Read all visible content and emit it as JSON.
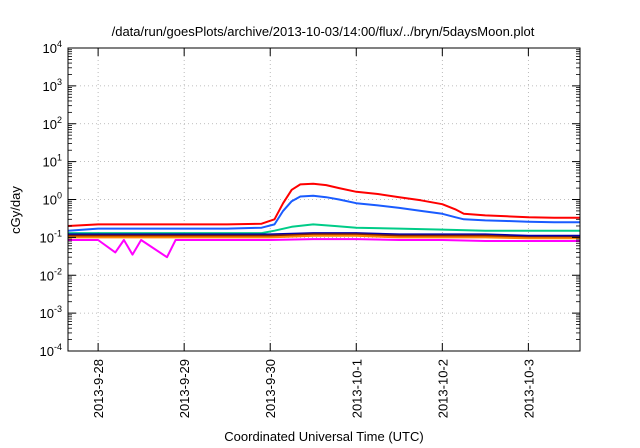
{
  "chart_data": {
    "type": "line",
    "title": "/data/run/goesPlots/archive/2013-10-03/14:00/flux/../bryn/5daysMoon.plot",
    "xlabel": "Coordinated Universal Time (UTC)",
    "ylabel": "cGy/day",
    "yscale": "log",
    "ylim": [
      0.0001,
      10000
    ],
    "xlim": [
      -0.35,
      5.6
    ],
    "x_unit": "days since 2013-9-28",
    "grid": true,
    "legend": "none",
    "y_ticks": [
      {
        "base": "10",
        "exp": "-4",
        "value": -4
      },
      {
        "base": "10",
        "exp": "-3",
        "value": -3
      },
      {
        "base": "10",
        "exp": "-2",
        "value": -2
      },
      {
        "base": "10",
        "exp": "-1",
        "value": -1
      },
      {
        "base": "10",
        "exp": "0",
        "value": 0
      },
      {
        "base": "10",
        "exp": "1",
        "value": 1
      },
      {
        "base": "10",
        "exp": "2",
        "value": 2
      },
      {
        "base": "10",
        "exp": "3",
        "value": 3
      },
      {
        "base": "10",
        "exp": "4",
        "value": 4
      }
    ],
    "x_ticks": [
      {
        "label": "2013-9-28",
        "value": 0
      },
      {
        "label": "2013-9-29",
        "value": 1
      },
      {
        "label": "2013-9-30",
        "value": 2
      },
      {
        "label": "2013-10-1",
        "value": 3
      },
      {
        "label": "2013-10-2",
        "value": 4
      },
      {
        "label": "2013-10-3",
        "value": 5
      }
    ],
    "series": [
      {
        "color": "#ff0000",
        "points": [
          [
            -0.35,
            0.2
          ],
          [
            0,
            0.22
          ],
          [
            0.5,
            0.22
          ],
          [
            1,
            0.22
          ],
          [
            1.5,
            0.22
          ],
          [
            1.9,
            0.23
          ],
          [
            2.05,
            0.3
          ],
          [
            2.15,
            0.8
          ],
          [
            2.25,
            1.8
          ],
          [
            2.35,
            2.5
          ],
          [
            2.5,
            2.6
          ],
          [
            2.65,
            2.4
          ],
          [
            2.8,
            2.0
          ],
          [
            3.0,
            1.6
          ],
          [
            3.25,
            1.4
          ],
          [
            3.5,
            1.15
          ],
          [
            3.75,
            0.95
          ],
          [
            4.0,
            0.75
          ],
          [
            4.15,
            0.55
          ],
          [
            4.25,
            0.42
          ],
          [
            4.5,
            0.38
          ],
          [
            4.75,
            0.36
          ],
          [
            5.0,
            0.34
          ],
          [
            5.3,
            0.33
          ],
          [
            5.6,
            0.33
          ]
        ]
      },
      {
        "color": "#1a5cff",
        "points": [
          [
            -0.35,
            0.15
          ],
          [
            0,
            0.17
          ],
          [
            0.5,
            0.17
          ],
          [
            1,
            0.17
          ],
          [
            1.5,
            0.17
          ],
          [
            1.9,
            0.18
          ],
          [
            2.05,
            0.22
          ],
          [
            2.15,
            0.5
          ],
          [
            2.25,
            0.9
          ],
          [
            2.35,
            1.2
          ],
          [
            2.5,
            1.25
          ],
          [
            2.65,
            1.15
          ],
          [
            2.8,
            1.0
          ],
          [
            3.0,
            0.8
          ],
          [
            3.25,
            0.7
          ],
          [
            3.5,
            0.6
          ],
          [
            3.75,
            0.5
          ],
          [
            4.0,
            0.42
          ],
          [
            4.15,
            0.34
          ],
          [
            4.25,
            0.3
          ],
          [
            4.5,
            0.28
          ],
          [
            4.75,
            0.27
          ],
          [
            5.0,
            0.26
          ],
          [
            5.3,
            0.25
          ],
          [
            5.6,
            0.25
          ]
        ]
      },
      {
        "color": "#00cc88",
        "points": [
          [
            -0.35,
            0.13
          ],
          [
            0,
            0.13
          ],
          [
            0.5,
            0.13
          ],
          [
            1,
            0.13
          ],
          [
            1.5,
            0.13
          ],
          [
            1.9,
            0.13
          ],
          [
            2.05,
            0.15
          ],
          [
            2.25,
            0.19
          ],
          [
            2.5,
            0.22
          ],
          [
            2.75,
            0.2
          ],
          [
            3.0,
            0.18
          ],
          [
            3.5,
            0.17
          ],
          [
            4.0,
            0.16
          ],
          [
            4.5,
            0.15
          ],
          [
            5.0,
            0.15
          ],
          [
            5.6,
            0.15
          ]
        ]
      },
      {
        "color": "#0000aa",
        "points": [
          [
            -0.35,
            0.12
          ],
          [
            0,
            0.12
          ],
          [
            0.5,
            0.12
          ],
          [
            1,
            0.12
          ],
          [
            1.5,
            0.12
          ],
          [
            2.0,
            0.12
          ],
          [
            2.5,
            0.13
          ],
          [
            3.0,
            0.13
          ],
          [
            3.5,
            0.12
          ],
          [
            4.0,
            0.12
          ],
          [
            4.5,
            0.12
          ],
          [
            5.0,
            0.11
          ],
          [
            5.6,
            0.11
          ]
        ]
      },
      {
        "color": "#882200",
        "points": [
          [
            -0.35,
            0.11
          ],
          [
            0,
            0.11
          ],
          [
            0.5,
            0.11
          ],
          [
            1,
            0.11
          ],
          [
            1.5,
            0.11
          ],
          [
            2.0,
            0.11
          ],
          [
            2.5,
            0.12
          ],
          [
            3.0,
            0.12
          ],
          [
            3.5,
            0.11
          ],
          [
            4.0,
            0.11
          ],
          [
            4.5,
            0.11
          ],
          [
            5.0,
            0.1
          ],
          [
            5.6,
            0.1
          ]
        ]
      },
      {
        "color": "#ff8800",
        "points": [
          [
            -0.35,
            0.1
          ],
          [
            0,
            0.1
          ],
          [
            0.5,
            0.1
          ],
          [
            1,
            0.1
          ],
          [
            1.5,
            0.1
          ],
          [
            2.0,
            0.1
          ],
          [
            2.5,
            0.11
          ],
          [
            3.0,
            0.11
          ],
          [
            3.5,
            0.1
          ],
          [
            4.0,
            0.1
          ],
          [
            4.5,
            0.1
          ],
          [
            5.0,
            0.095
          ],
          [
            5.6,
            0.095
          ]
        ]
      },
      {
        "color": "#ff00ff",
        "points": [
          [
            -0.35,
            0.085
          ],
          [
            0,
            0.085
          ],
          [
            0.2,
            0.04
          ],
          [
            0.3,
            0.085
          ],
          [
            0.4,
            0.035
          ],
          [
            0.5,
            0.085
          ],
          [
            0.8,
            0.03
          ],
          [
            0.9,
            0.085
          ],
          [
            1,
            0.085
          ],
          [
            1.5,
            0.085
          ],
          [
            2.0,
            0.085
          ],
          [
            2.5,
            0.09
          ],
          [
            3.0,
            0.09
          ],
          [
            3.5,
            0.085
          ],
          [
            4.0,
            0.085
          ],
          [
            4.5,
            0.08
          ],
          [
            5.0,
            0.08
          ],
          [
            5.6,
            0.08
          ]
        ]
      }
    ]
  }
}
